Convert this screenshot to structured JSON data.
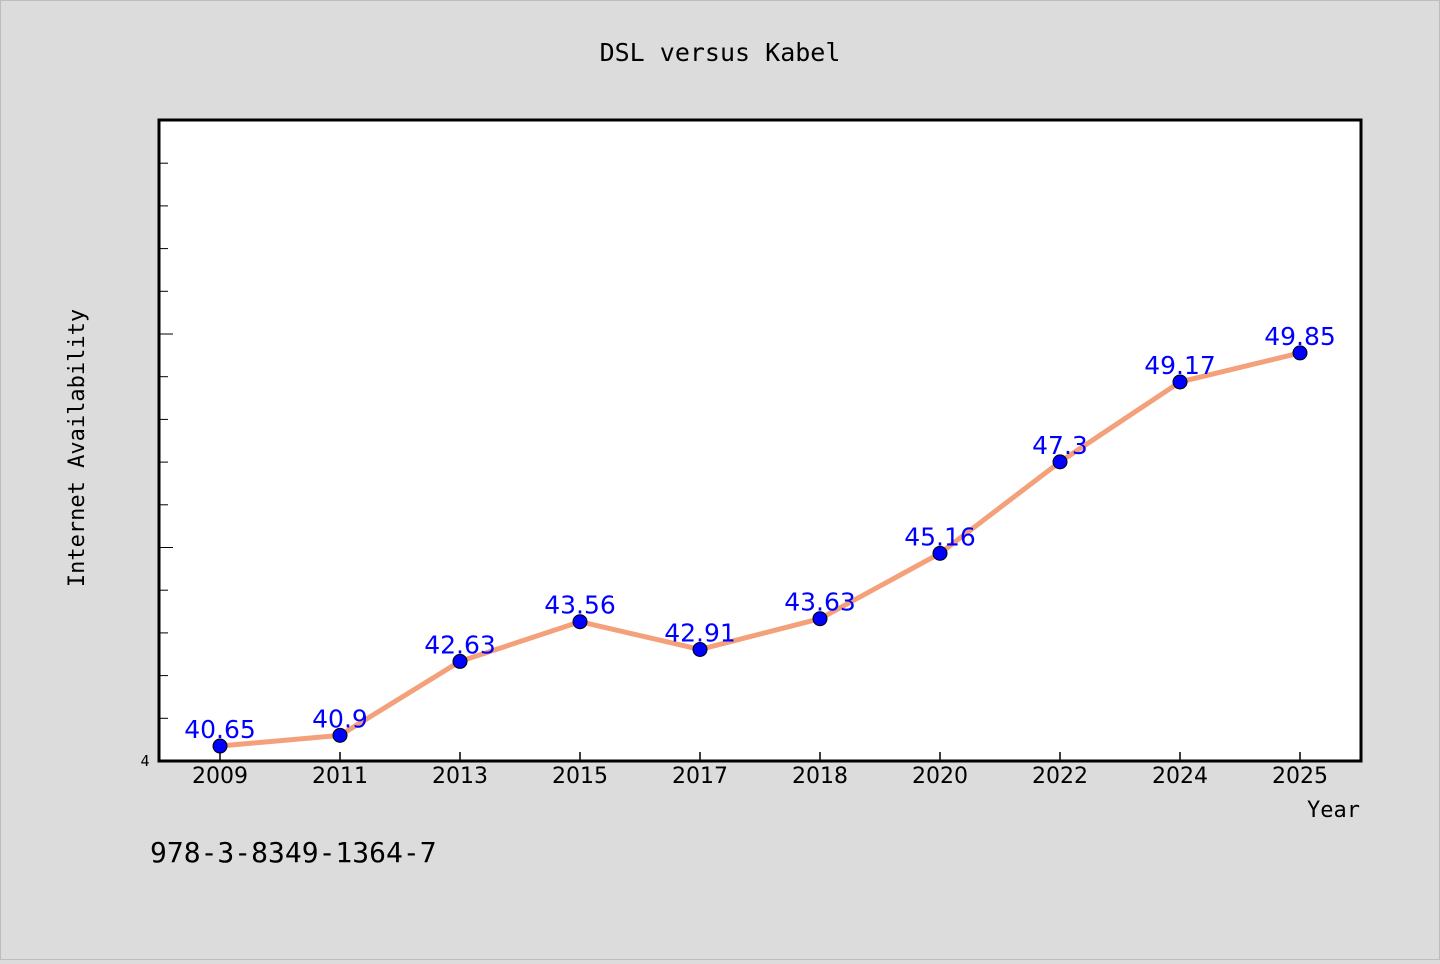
{
  "chart_data": {
    "type": "line",
    "title": "DSL versus Kabel",
    "xlabel": "Year",
    "ylabel": "Internet Availability",
    "categories": [
      "2009",
      "2011",
      "2013",
      "2015",
      "2017",
      "2018",
      "2020",
      "2022",
      "2024",
      "2025"
    ],
    "series": [
      {
        "values": [
          40.65,
          40.9,
          42.63,
          43.56,
          42.91,
          43.63,
          45.16,
          47.3,
          49.17,
          49.85
        ],
        "labels": [
          "40.65",
          "40.9",
          "42.63",
          "43.56",
          "42.91",
          "43.63",
          "45.16",
          "47.3",
          "49.17",
          "49.85"
        ],
        "line_color": "#f4a07a",
        "marker_color": "#0000ff",
        "label_color": "#0000ff"
      }
    ],
    "y_tick_labels": [
      "4"
    ],
    "ylim": [
      40.3,
      55.3
    ],
    "grid": false,
    "legend": "none"
  },
  "footer_text": "978-3-8349-1364-7",
  "colors": {
    "background": "#dcdcdc",
    "plot_background": "#ffffff",
    "axis": "#000000"
  }
}
